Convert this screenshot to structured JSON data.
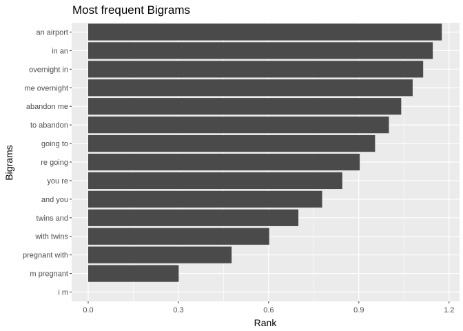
{
  "chart_data": {
    "type": "bar",
    "orientation": "horizontal",
    "title": "Most frequent Bigrams",
    "xlabel": "Rank",
    "ylabel": "Bigrams",
    "categories": [
      "an airport",
      "in an",
      "overnight in",
      "me overnight",
      "abandon me",
      "to abandon",
      "going to",
      "re going",
      "you re",
      "and you",
      "twins and",
      "with twins",
      "pregnant with",
      "m pregnant",
      "i m"
    ],
    "values": [
      1.176,
      1.146,
      1.114,
      1.079,
      1.041,
      1.0,
      0.954,
      0.903,
      0.845,
      0.778,
      0.699,
      0.602,
      0.477,
      0.301,
      0.0
    ],
    "xlim": [
      -0.055,
      1.235
    ],
    "xticks": [
      "0.0",
      "0.3",
      "0.6",
      "0.9",
      "1.2"
    ],
    "grid": true,
    "colors": {
      "bar": "#4a4a4a",
      "panel": "#ebebeb",
      "grid": "#ffffff"
    }
  }
}
